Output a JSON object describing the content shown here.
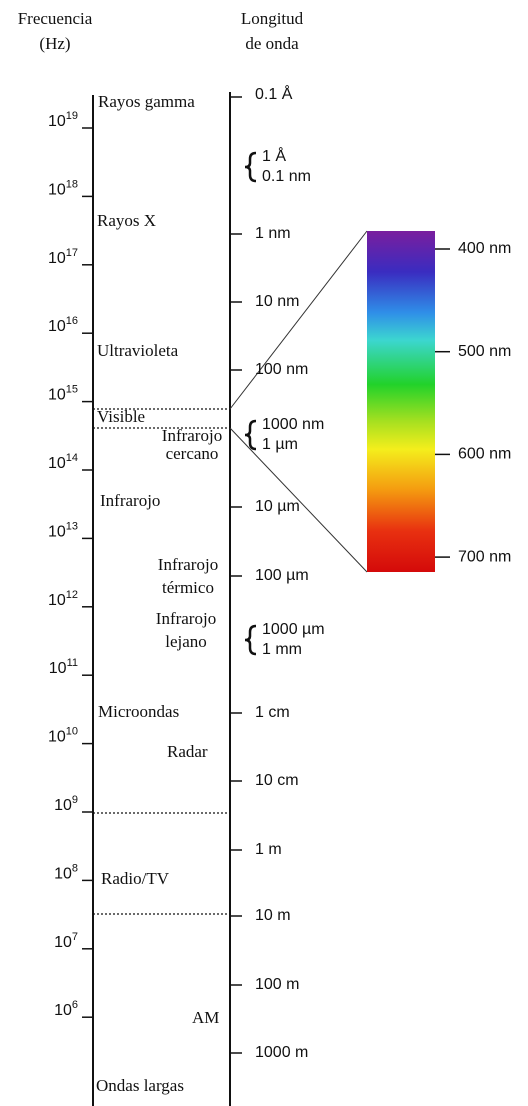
{
  "header": {
    "frequency": [
      "Frecuencia",
      "(Hz)"
    ],
    "wavelength": [
      "Longitud",
      "de onda"
    ]
  },
  "frequency_ticks": [
    {
      "base": "10",
      "exp": "19"
    },
    {
      "base": "10",
      "exp": "18"
    },
    {
      "base": "10",
      "exp": "17"
    },
    {
      "base": "10",
      "exp": "16"
    },
    {
      "base": "10",
      "exp": "15"
    },
    {
      "base": "10",
      "exp": "14"
    },
    {
      "base": "10",
      "exp": "13"
    },
    {
      "base": "10",
      "exp": "12"
    },
    {
      "base": "10",
      "exp": "11"
    },
    {
      "base": "10",
      "exp": "10"
    },
    {
      "base": "10",
      "exp": "9"
    },
    {
      "base": "10",
      "exp": "8"
    },
    {
      "base": "10",
      "exp": "7"
    },
    {
      "base": "10",
      "exp": "6"
    }
  ],
  "wavelength_ticks": [
    "0.1 Å",
    "1 nm",
    "10 nm",
    "100 nm",
    "10 µm",
    "100 µm",
    "1 cm",
    "10 cm",
    "1 m",
    "10 m",
    "100 m",
    "1000 m"
  ],
  "wavelength_braces": [
    [
      "1 Å",
      "0.1 nm"
    ],
    [
      "1000 nm",
      "1 µm"
    ],
    [
      "1000 µm",
      "1 mm"
    ]
  ],
  "bands": [
    [
      "Rayos gamma"
    ],
    [
      "Rayos X"
    ],
    [
      "Ultravioleta"
    ],
    [
      "Visible"
    ],
    [
      "Infrarojo",
      "cercano"
    ],
    [
      "Infrarojo"
    ],
    [
      "Infrarojo",
      "térmico"
    ],
    [
      "Infrarojo",
      "lejano"
    ],
    [
      "Microondas"
    ],
    [
      "Radar"
    ],
    [
      "Radio/TV"
    ],
    [
      "AM"
    ],
    [
      "Ondas largas"
    ]
  ],
  "visible_spectrum": [
    "400 nm",
    "500 nm",
    "600 nm",
    "700 nm"
  ]
}
